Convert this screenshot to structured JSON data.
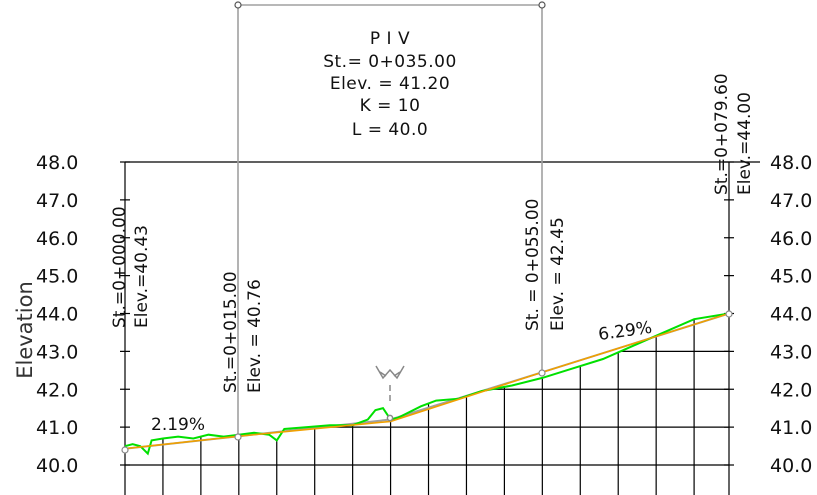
{
  "axis": {
    "ylabel": "Elevation",
    "ticks": [
      "48.0",
      "47.0",
      "46.0",
      "45.0",
      "44.0",
      "43.0",
      "42.0",
      "41.0",
      "40.0"
    ]
  },
  "piv_box": {
    "title": "P   I   V",
    "station": "St.=  0+035.00",
    "elevation": "Elev.  =  41.20",
    "k": "K  =  10",
    "l": "L  =  40.0"
  },
  "stations": [
    {
      "station": "St.=0+000.00",
      "elevation": "Elev.=40.43"
    },
    {
      "station": "St.=0+015.00",
      "elevation": "Elev.  =  40.76"
    },
    {
      "station": "St.  =  0+055.00",
      "elevation": "Elev.  =  42.45"
    },
    {
      "station": "St.=0+079.60",
      "elevation": "Elev.=44.00"
    }
  ],
  "grades": {
    "left": "2.19%",
    "right": "6.29%"
  },
  "colors": {
    "curve": "#f0a000",
    "ground": "#00e000",
    "tangent": "#a0a0a0",
    "grid": "#000000"
  },
  "chart_data": {
    "type": "line",
    "xlim": [
      0,
      79.6
    ],
    "ylim": [
      40,
      48
    ],
    "series": [
      {
        "values": [
          [
            0,
            40.43
          ],
          [
            15,
            40.76
          ],
          [
            35,
            41.2
          ],
          [
            55,
            42.45
          ],
          [
            79.6,
            44.0
          ]
        ]
      },
      {
        "values": [
          [
            0,
            40.43
          ],
          [
            15,
            40.76
          ],
          [
            35,
            41.15
          ],
          [
            55,
            42.45
          ],
          [
            79.6,
            44.0
          ]
        ]
      },
      {
        "values": [
          [
            0,
            40.5
          ],
          [
            1,
            40.55
          ],
          [
            2,
            40.5
          ],
          [
            3,
            40.3
          ],
          [
            3.5,
            40.65
          ],
          [
            5,
            40.7
          ],
          [
            7,
            40.75
          ],
          [
            9,
            40.7
          ],
          [
            11,
            40.8
          ],
          [
            13,
            40.75
          ],
          [
            15,
            40.8
          ],
          [
            17,
            40.85
          ],
          [
            19,
            40.8
          ],
          [
            20,
            40.65
          ],
          [
            21,
            40.95
          ],
          [
            24,
            41.0
          ],
          [
            27,
            41.05
          ],
          [
            30,
            41.05
          ],
          [
            32,
            41.2
          ],
          [
            33,
            41.45
          ],
          [
            34,
            41.5
          ],
          [
            35,
            41.2
          ],
          [
            36,
            41.25
          ],
          [
            37,
            41.35
          ],
          [
            39,
            41.55
          ],
          [
            41,
            41.7
          ],
          [
            44,
            41.75
          ],
          [
            47,
            41.95
          ],
          [
            51,
            42.1
          ],
          [
            55,
            42.3
          ],
          [
            59,
            42.55
          ],
          [
            63,
            42.8
          ],
          [
            67,
            43.15
          ],
          [
            71,
            43.5
          ],
          [
            75,
            43.85
          ],
          [
            79.6,
            44.0
          ]
        ]
      }
    ]
  }
}
